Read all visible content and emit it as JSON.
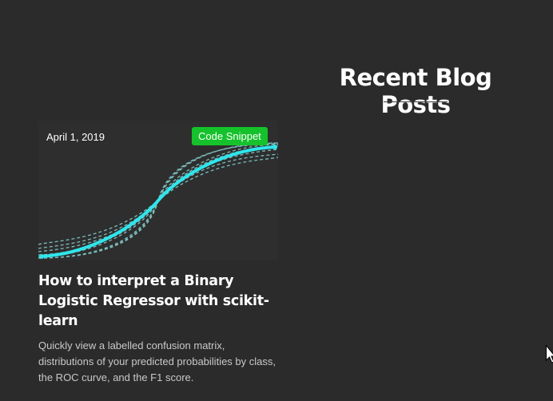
{
  "section": {
    "title": "Recent Blog Posts"
  },
  "post": {
    "date": "April 1, 2019",
    "tag": "Code Snippet",
    "title": "How to interpret a Binary Logistic Regressor with scikit-learn",
    "excerpt": "Quickly view a labelled confusion matrix, distributions of your predicted probabilities by class, the ROC curve, and the F1 score."
  },
  "colors": {
    "background": "#2b2b2b",
    "tag": "#15c22b",
    "curve": "#2ee6ec",
    "dashed": "#8ad4d4"
  }
}
